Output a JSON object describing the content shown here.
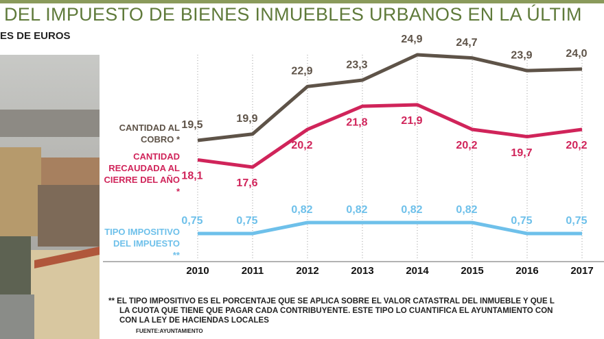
{
  "chart_data": {
    "type": "line",
    "title": "DEL IMPUESTO DE BIENES INMUEBLES URBANOS EN LA ÚLTIM",
    "subtitle": "ES DE EUROS",
    "categories": [
      "2010",
      "2011",
      "2012",
      "2013",
      "2014",
      "2015",
      "2016",
      "2017"
    ],
    "series": [
      {
        "name": "CANTIDAD AL COBRO *",
        "color": "#5e5348",
        "values": [
          19.5,
          19.9,
          22.9,
          23.3,
          24.9,
          24.7,
          23.9,
          24.0
        ],
        "value_labels": [
          "19,5",
          "19,9",
          "22,9",
          "23,3",
          "24,9",
          "24,7",
          "23,9",
          "24,0"
        ]
      },
      {
        "name": "CANTIDAD RECAUDADA AL CIERRE DEL AÑO *",
        "color": "#d0245a",
        "values": [
          18.1,
          17.6,
          20.2,
          21.8,
          21.9,
          20.2,
          19.7,
          20.2
        ],
        "value_labels": [
          "18,1",
          "17,6",
          "20,2",
          "21,8",
          "21,9",
          "20,2",
          "19,7",
          "20,2"
        ]
      },
      {
        "name": "TIPO IMPOSITIVO DEL IMPUESTO **",
        "color": "#6ec0ea",
        "values": [
          0.75,
          0.75,
          0.82,
          0.82,
          0.82,
          0.82,
          0.75,
          0.75
        ],
        "value_labels": [
          "0,75",
          "0,75",
          "0,82",
          "0,82",
          "0,82",
          "0,82",
          "0,75",
          "0,75"
        ]
      }
    ],
    "footnote": [
      "** EL TIPO IMPOSITIVO ES EL PORCENTAJE QUE SE APLICA SOBRE EL VALOR CATASTRAL DEL INMUEBLE Y QUE L",
      "LA CUOTA QUE TIENE QUE PAGAR CADA CONTRIBUYENTE. ESTE TIPO LO CUANTIFICA EL AYUNTAMIENTO CON",
      "CON LA  LEY DE HACIENDAS LOCALES"
    ],
    "source": "FUENTE:AYUNTAMIENTO"
  }
}
